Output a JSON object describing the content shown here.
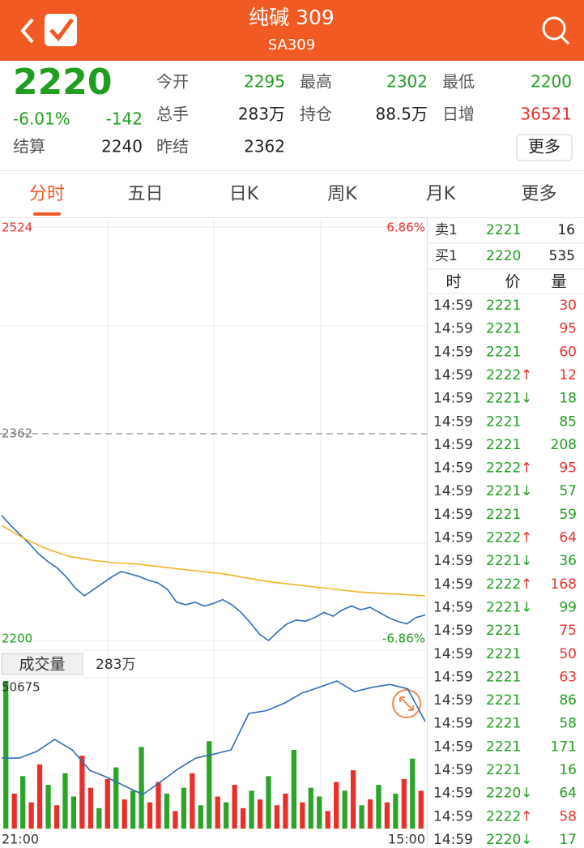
{
  "header": {
    "title": "纯碱 309",
    "subtitle": "SA309"
  },
  "quote": {
    "price": 2220,
    "change_pct": "-6.01%",
    "change": -142,
    "color": "#1f9e1f",
    "fields": [
      {
        "label": "今开",
        "value": 2295,
        "color": "#1f9e1f"
      },
      {
        "label": "最高",
        "value": 2302,
        "color": "#1f9e1f"
      },
      {
        "label": "最低",
        "value": 2200,
        "color": "#1f9e1f"
      },
      {
        "label": "总手",
        "value": "283万",
        "color": "#222222"
      },
      {
        "label": "持仓",
        "value": "88.5万",
        "color": "#222222"
      },
      {
        "label": "日增",
        "value": 36521,
        "color": "#e8302b"
      },
      {
        "label": "结算",
        "value": 2240,
        "color": "#222222"
      },
      {
        "label": "昨结",
        "value": 2362,
        "color": "#222222"
      }
    ],
    "more": "更多"
  },
  "tabs": [
    "分时",
    "五日",
    "日K",
    "周K",
    "月K",
    "更多"
  ],
  "active_tab": 0,
  "chart_data": [
    {
      "type": "line",
      "ylim": [
        2200,
        2524
      ],
      "yticks": [
        2200,
        2362,
        2524
      ],
      "y2lim": [
        -6.86,
        6.86
      ],
      "y2ticks": [
        {
          "value": -6.86,
          "label": "-6.86%"
        },
        {
          "value": 6.86,
          "label": "6.86%"
        }
      ],
      "series": [
        {
          "color": "#2f6db5",
          "values": [
            2298,
            2290,
            2283,
            2276,
            2268,
            2262,
            2257,
            2250,
            2241,
            2235,
            2240,
            2245,
            2250,
            2254,
            2252,
            2250,
            2247,
            2245,
            2240,
            2230,
            2228,
            2230,
            2227,
            2229,
            2232,
            2228,
            2222,
            2214,
            2205,
            2200,
            2207,
            2213,
            2216,
            2215,
            2218,
            2222,
            2219,
            2224,
            2227,
            2224,
            2226,
            2222,
            2218,
            2215,
            2213,
            2218,
            2220
          ]
        },
        {
          "color": "#f0b429",
          "values": [
            2290,
            2280,
            2272,
            2266,
            2263,
            2261,
            2260,
            2258,
            2256,
            2254,
            2252,
            2249,
            2246,
            2244,
            2242,
            2240,
            2238,
            2237,
            2236,
            2235
          ]
        }
      ]
    },
    {
      "type": "bar",
      "label": "成交量",
      "total": "283万",
      "ylim": [
        0,
        50675
      ],
      "yticks": [
        50675
      ],
      "x_labels": [
        "21:00",
        "15:00"
      ],
      "values": [
        50675,
        12000,
        18000,
        9000,
        22000,
        15000,
        8000,
        19000,
        11000,
        25000,
        14000,
        7000,
        17000,
        21000,
        10000,
        13000,
        28000,
        9000,
        16000,
        12000,
        6000,
        14000,
        19000,
        8000,
        30000,
        11000,
        9000,
        15000,
        7000,
        13000,
        10000,
        18000,
        8000,
        12000,
        27000,
        9000,
        14000,
        11000,
        6000,
        16000,
        13000,
        20000,
        8000,
        10000,
        15000,
        9000,
        12000,
        17000,
        24000,
        13000
      ],
      "colors": [
        "#2aa52a",
        "#e8302b",
        "#2aa52a",
        "#e8302b",
        "#e8302b",
        "#2aa52a",
        "#e8302b",
        "#2aa52a",
        "#2aa52a",
        "#e8302b",
        "#e8302b",
        "#2aa52a",
        "#e8302b",
        "#2aa52a",
        "#e8302b",
        "#2aa52a",
        "#2aa52a",
        "#e8302b",
        "#e8302b",
        "#2aa52a",
        "#e8302b",
        "#2aa52a",
        "#e8302b",
        "#2aa52a",
        "#2aa52a",
        "#e8302b",
        "#2aa52a",
        "#e8302b",
        "#e8302b",
        "#2aa52a",
        "#e8302b",
        "#2aa52a",
        "#e8302b",
        "#e8302b",
        "#2aa52a",
        "#e8302b",
        "#2aa52a",
        "#2aa52a",
        "#e8302b",
        "#e8302b",
        "#2aa52a",
        "#e8302b",
        "#2aa52a",
        "#e8302b",
        "#2aa52a",
        "#e8302b",
        "#2aa52a",
        "#e8302b",
        "#2aa52a",
        "#e8302b"
      ],
      "series": [
        {
          "color": "#2f6db5",
          "values": [
            24200,
            24200,
            26500,
            30600,
            27000,
            20000,
            17500,
            14500,
            11700,
            16000,
            20500,
            24200,
            25500,
            27000,
            39500,
            40500,
            43000,
            46500,
            48500,
            50675,
            47000,
            48500,
            49500,
            48000,
            36750
          ]
        }
      ]
    }
  ],
  "order_book": [
    {
      "label": "卖1",
      "price": 2221,
      "volume": 16
    },
    {
      "label": "买1",
      "price": 2220,
      "volume": 535
    }
  ],
  "trades": {
    "headers": [
      "时",
      "价",
      "量"
    ],
    "rows": [
      {
        "time": "14:59",
        "price": 2221,
        "volume": 30,
        "color": "#e8302b"
      },
      {
        "time": "14:59",
        "price": 2221,
        "volume": 95,
        "color": "#e8302b"
      },
      {
        "time": "14:59",
        "price": 2221,
        "volume": 60,
        "color": "#e8302b"
      },
      {
        "time": "14:59",
        "price": 2222,
        "arrow": "↑",
        "volume": 12,
        "color": "#e8302b"
      },
      {
        "time": "14:59",
        "price": 2221,
        "arrow": "↓",
        "volume": 18,
        "color": "#1f9e1f"
      },
      {
        "time": "14:59",
        "price": 2221,
        "volume": 85,
        "color": "#1f9e1f"
      },
      {
        "time": "14:59",
        "price": 2221,
        "volume": 208,
        "color": "#1f9e1f"
      },
      {
        "time": "14:59",
        "price": 2222,
        "arrow": "↑",
        "volume": 95,
        "color": "#e8302b"
      },
      {
        "time": "14:59",
        "price": 2221,
        "arrow": "↓",
        "volume": 57,
        "color": "#1f9e1f"
      },
      {
        "time": "14:59",
        "price": 2221,
        "volume": 59,
        "color": "#1f9e1f"
      },
      {
        "time": "14:59",
        "price": 2222,
        "arrow": "↑",
        "volume": 64,
        "color": "#e8302b"
      },
      {
        "time": "14:59",
        "price": 2221,
        "arrow": "↓",
        "volume": 36,
        "color": "#1f9e1f"
      },
      {
        "time": "14:59",
        "price": 2222,
        "arrow": "↑",
        "volume": 168,
        "color": "#e8302b"
      },
      {
        "time": "14:59",
        "price": 2221,
        "arrow": "↓",
        "volume": 99,
        "color": "#1f9e1f"
      },
      {
        "time": "14:59",
        "price": 2221,
        "volume": 75,
        "color": "#e8302b"
      },
      {
        "time": "14:59",
        "price": 2221,
        "volume": 50,
        "color": "#e8302b"
      },
      {
        "time": "14:59",
        "price": 2221,
        "volume": 63,
        "color": "#e8302b"
      },
      {
        "time": "14:59",
        "price": 2221,
        "volume": 86,
        "color": "#1f9e1f"
      },
      {
        "time": "14:59",
        "price": 2221,
        "volume": 58,
        "color": "#1f9e1f"
      },
      {
        "time": "14:59",
        "price": 2221,
        "volume": 171,
        "color": "#1f9e1f"
      },
      {
        "time": "14:59",
        "price": 2221,
        "volume": 16,
        "color": "#1f9e1f"
      },
      {
        "time": "14:59",
        "price": 2220,
        "arrow": "↓",
        "volume": 64,
        "color": "#1f9e1f"
      },
      {
        "time": "14:59",
        "price": 2222,
        "arrow": "↑",
        "volume": 58,
        "color": "#e8302b"
      },
      {
        "time": "14:59",
        "price": 2220,
        "arrow": "↓",
        "volume": 17,
        "color": "#1f9e1f"
      }
    ]
  }
}
